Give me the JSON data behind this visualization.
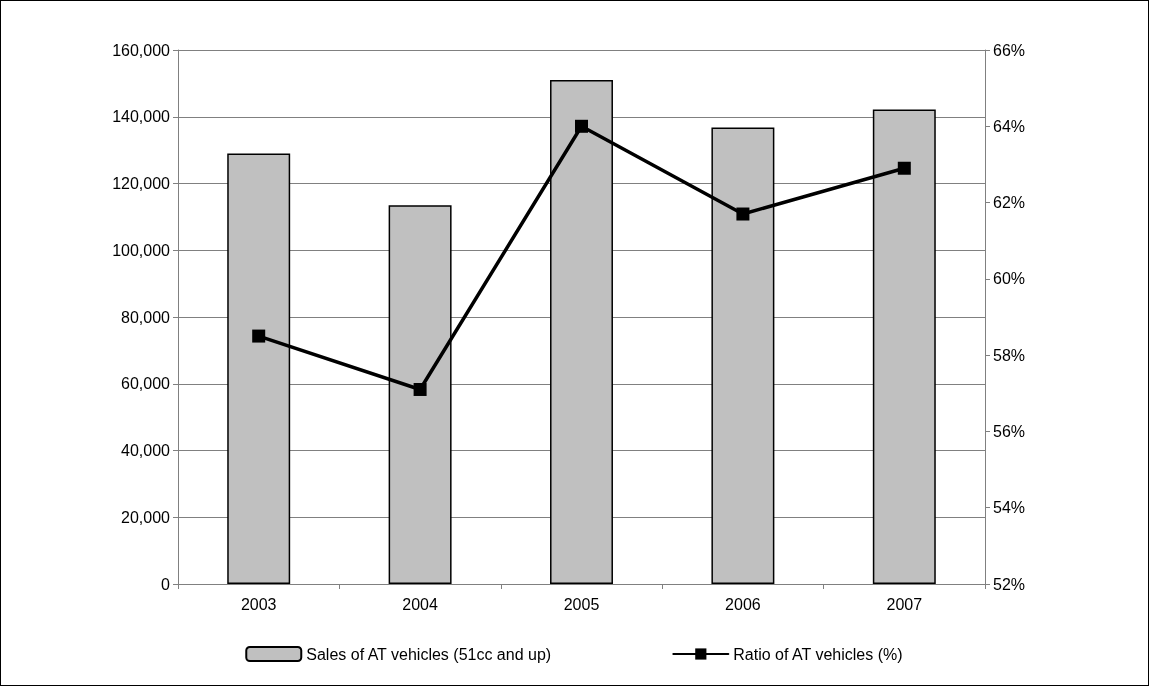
{
  "chart_data": {
    "type": "bar",
    "categories": [
      "2003",
      "2004",
      "2005",
      "2006",
      "2007"
    ],
    "series": [
      {
        "name": "Sales of AT vehicles (51cc and up)",
        "color": "#c0c0c0",
        "values": [
          129000,
          113500,
          151000,
          136800,
          142200
        ]
      },
      {
        "name": "Ratio of AT vehicles (%)",
        "type": "line",
        "axis": "y2",
        "color": "#000000",
        "marker": "square",
        "values": [
          58.5,
          57.1,
          64.0,
          61.7,
          62.9
        ]
      }
    ],
    "ylim": [
      0,
      160000
    ],
    "yticks": [
      {
        "value": 0,
        "label": "0"
      },
      {
        "value": 20000,
        "label": "20,000"
      },
      {
        "value": 40000,
        "label": "40,000"
      },
      {
        "value": 60000,
        "label": "60,000"
      },
      {
        "value": 80000,
        "label": "80,000"
      },
      {
        "value": 100000,
        "label": "100,000"
      },
      {
        "value": 120000,
        "label": "120,000"
      },
      {
        "value": 140000,
        "label": "140,000"
      },
      {
        "value": 160000,
        "label": "160,000"
      }
    ],
    "y2lim": [
      52,
      66
    ],
    "y2ticks": [
      {
        "value": 52,
        "label": "52%"
      },
      {
        "value": 54,
        "label": "54%"
      },
      {
        "value": 56,
        "label": "56%"
      },
      {
        "value": 58,
        "label": "58%"
      },
      {
        "value": 60,
        "label": "60%"
      },
      {
        "value": 62,
        "label": "62%"
      },
      {
        "value": 64,
        "label": "64%"
      },
      {
        "value": 66,
        "label": "66%"
      }
    ],
    "grid": "y",
    "legend": "bottom"
  }
}
